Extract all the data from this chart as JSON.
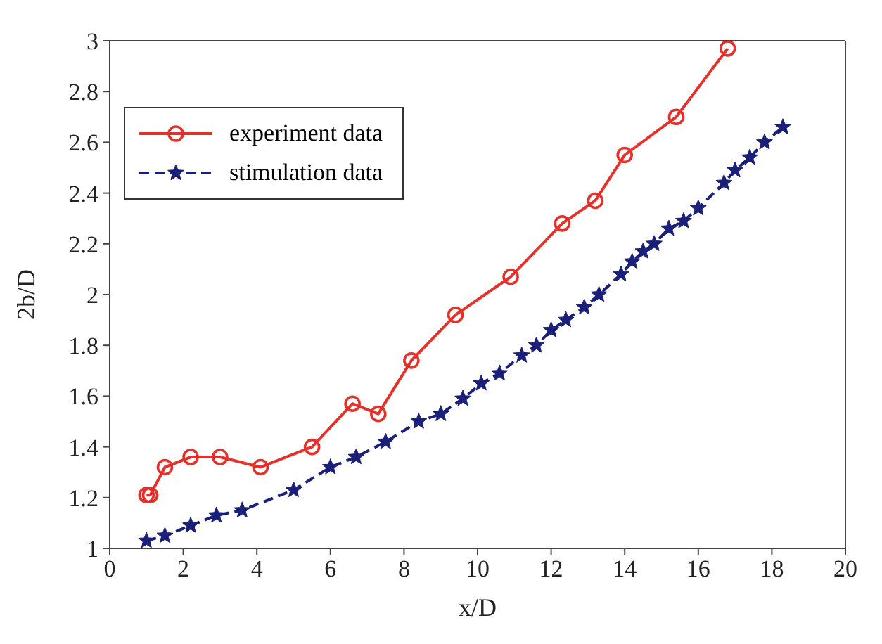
{
  "chart_data": {
    "type": "line",
    "xlabel": "x/D",
    "ylabel": "2b/D",
    "xlim": [
      0,
      20
    ],
    "xticks": [
      0,
      2,
      4,
      6,
      8,
      10,
      12,
      14,
      16,
      18,
      20
    ],
    "ylim": [
      1,
      3
    ],
    "yticks": [
      1,
      1.2,
      1.4,
      1.6,
      1.8,
      2,
      2.2,
      2.4,
      2.6,
      2.8,
      3
    ],
    "legend": "top left",
    "series": [
      {
        "name": "experiment data",
        "color": "#e8302a",
        "marker": "circle",
        "line_style": "solid",
        "x": [
          1.0,
          1.1,
          1.5,
          2.2,
          3.0,
          4.1,
          5.5,
          6.6,
          7.3,
          8.2,
          9.4,
          10.9,
          12.3,
          13.2,
          14.0,
          15.4,
          16.8
        ],
        "values": [
          1.21,
          1.21,
          1.32,
          1.36,
          1.36,
          1.32,
          1.4,
          1.57,
          1.53,
          1.74,
          1.92,
          2.07,
          2.28,
          2.37,
          2.55,
          2.7,
          2.97
        ]
      },
      {
        "name": "stimulation data",
        "color": "#1a1f7a",
        "marker": "star",
        "line_style": "dashed",
        "x": [
          1.0,
          1.5,
          2.2,
          2.9,
          3.6,
          5.0,
          6.0,
          6.7,
          7.5,
          8.4,
          9.0,
          9.6,
          10.1,
          10.6,
          11.2,
          11.6,
          12.0,
          12.4,
          12.9,
          13.3,
          13.9,
          14.2,
          14.5,
          14.8,
          15.2,
          15.6,
          16.0,
          16.7,
          17.0,
          17.4,
          17.8,
          18.3
        ],
        "values": [
          1.03,
          1.05,
          1.09,
          1.13,
          1.15,
          1.23,
          1.32,
          1.36,
          1.42,
          1.5,
          1.53,
          1.59,
          1.65,
          1.69,
          1.76,
          1.8,
          1.86,
          1.9,
          1.95,
          2.0,
          2.08,
          2.13,
          2.17,
          2.2,
          2.26,
          2.29,
          2.34,
          2.44,
          2.49,
          2.54,
          2.6,
          2.66
        ]
      }
    ]
  }
}
